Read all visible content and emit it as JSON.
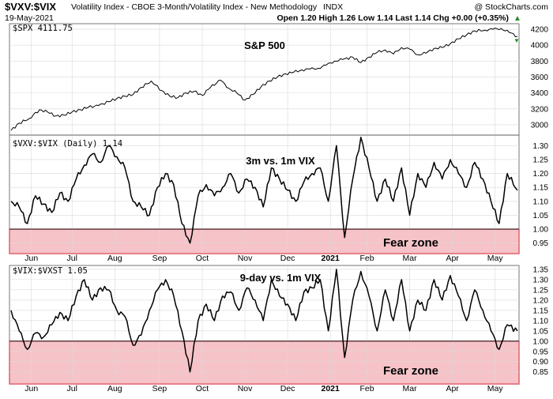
{
  "header": {
    "symbol": "$VXV:$VIX",
    "description": "Volatility Index - CBOE 3-Month/Volatility Index - New Methodology",
    "exchange": "INDX",
    "copyright": "@ StockCharts.com",
    "date": "19-May-2021",
    "quote": "Open 1.20  High 1.26  Low 1.14  Last 1.14  Chg +0.00 (+0.35%)",
    "quote_arrow": "▲"
  },
  "months": [
    "Jun",
    "Jul",
    "Aug",
    "Sep",
    "Oct",
    "Nov",
    "Dec",
    "2021",
    "Feb",
    "Mar",
    "Apr",
    "May"
  ],
  "colors": {
    "line": "#000000",
    "fear_fill": "#f6c3c8",
    "fear_border": "#e0626e",
    "grid": "#d9d9d9"
  },
  "chart_data": [
    {
      "type": "line",
      "legend": "$SPX 4111.75",
      "annotation": "S&P 500",
      "y_ticks": [
        "4200",
        "4000",
        "3800",
        "3600",
        "3400",
        "3200",
        "3000"
      ],
      "ylim": [
        2880,
        4260
      ],
      "x_index": [
        0,
        4,
        9,
        14,
        18,
        22,
        26,
        30,
        34,
        38,
        43,
        48,
        52,
        56,
        60,
        64,
        69,
        74,
        78,
        82,
        86,
        90,
        94,
        98,
        103,
        107,
        111,
        115,
        119,
        123,
        127,
        131,
        135,
        139,
        143,
        147,
        151,
        155,
        159,
        163,
        168,
        172,
        176,
        180,
        184,
        188,
        192,
        196,
        200,
        204,
        208,
        212,
        216,
        220,
        224,
        228,
        233,
        237,
        241,
        245,
        249
      ],
      "values": [
        2930,
        3020,
        3080,
        3190,
        3160,
        3110,
        3120,
        3160,
        3190,
        3220,
        3240,
        3290,
        3330,
        3360,
        3380,
        3470,
        3550,
        3430,
        3360,
        3340,
        3400,
        3420,
        3370,
        3470,
        3560,
        3460,
        3400,
        3310,
        3380,
        3480,
        3550,
        3600,
        3640,
        3660,
        3690,
        3700,
        3710,
        3750,
        3800,
        3820,
        3850,
        3780,
        3850,
        3910,
        3940,
        3890,
        3970,
        3950,
        3880,
        3900,
        3960,
        3970,
        4020,
        4080,
        4130,
        4180,
        4190,
        4200,
        4210,
        4160,
        4110
      ],
      "last_marker": "▼"
    },
    {
      "type": "line",
      "legend": "$VXV:$VIX (Daily) 1.14",
      "annotation": "3m vs. 1m VIX",
      "zone_label": "Fear zone",
      "threshold": 1.0,
      "y_ticks": [
        "1.30",
        "1.25",
        "1.20",
        "1.15",
        "1.10",
        "1.05",
        "1.00",
        "0.95"
      ],
      "ylim": [
        0.915,
        1.335
      ],
      "x_index": [
        0,
        4,
        8,
        12,
        16,
        20,
        24,
        28,
        32,
        36,
        40,
        44,
        48,
        52,
        56,
        60,
        64,
        68,
        72,
        76,
        80,
        84,
        88,
        92,
        96,
        100,
        104,
        108,
        112,
        116,
        120,
        124,
        128,
        132,
        136,
        140,
        144,
        148,
        152,
        156,
        160,
        164,
        168,
        172,
        176,
        180,
        184,
        188,
        192,
        196,
        200,
        204,
        208,
        212,
        216,
        220,
        224,
        228,
        232,
        236,
        240,
        244,
        249
      ],
      "values": [
        1.1,
        1.08,
        1.02,
        1.12,
        1.09,
        1.06,
        1.13,
        1.1,
        1.18,
        1.23,
        1.27,
        1.24,
        1.3,
        1.26,
        1.22,
        1.1,
        1.08,
        1.05,
        1.15,
        1.2,
        1.16,
        1.02,
        0.95,
        1.12,
        1.16,
        1.12,
        1.15,
        1.2,
        1.13,
        1.18,
        1.15,
        1.08,
        1.22,
        1.18,
        1.14,
        1.1,
        1.17,
        1.2,
        1.22,
        1.1,
        1.3,
        0.97,
        1.18,
        1.33,
        1.22,
        1.1,
        1.18,
        1.1,
        1.22,
        1.05,
        1.2,
        1.15,
        1.24,
        1.18,
        1.25,
        1.2,
        1.15,
        1.24,
        1.18,
        1.1,
        1.02,
        1.2,
        1.14
      ]
    },
    {
      "type": "line",
      "legend": "$VIX:$VXST 1.05",
      "annotation": "9-day vs. 1m VIX",
      "zone_label": "Fear zone",
      "threshold": 1.0,
      "y_ticks": [
        "1.35",
        "1.30",
        "1.25",
        "1.20",
        "1.15",
        "1.10",
        "1.05",
        "1.00",
        "0.95",
        "0.90",
        "0.85"
      ],
      "ylim": [
        0.795,
        1.365
      ],
      "x_index": [
        0,
        4,
        8,
        12,
        16,
        20,
        24,
        28,
        32,
        36,
        40,
        44,
        48,
        52,
        56,
        60,
        64,
        68,
        72,
        76,
        80,
        84,
        88,
        92,
        96,
        100,
        104,
        108,
        112,
        116,
        120,
        124,
        128,
        132,
        136,
        140,
        144,
        148,
        152,
        156,
        160,
        164,
        168,
        172,
        176,
        180,
        184,
        188,
        192,
        196,
        200,
        204,
        208,
        212,
        216,
        220,
        224,
        228,
        232,
        236,
        240,
        244,
        249
      ],
      "values": [
        1.15,
        1.05,
        0.96,
        1.04,
        1.02,
        1.08,
        1.14,
        1.1,
        1.22,
        1.3,
        1.2,
        1.26,
        1.25,
        1.15,
        1.12,
        0.98,
        1.03,
        1.15,
        1.25,
        1.3,
        1.22,
        1.05,
        0.85,
        1.1,
        1.18,
        1.1,
        1.22,
        1.24,
        1.15,
        1.26,
        1.2,
        1.1,
        1.3,
        1.22,
        1.18,
        1.1,
        1.24,
        1.26,
        1.3,
        1.05,
        1.35,
        0.92,
        1.2,
        1.34,
        1.22,
        1.05,
        1.25,
        1.1,
        1.3,
        1.05,
        1.2,
        1.15,
        1.3,
        1.2,
        1.32,
        1.22,
        1.1,
        1.25,
        1.15,
        1.05,
        0.96,
        1.08,
        1.05
      ]
    }
  ]
}
